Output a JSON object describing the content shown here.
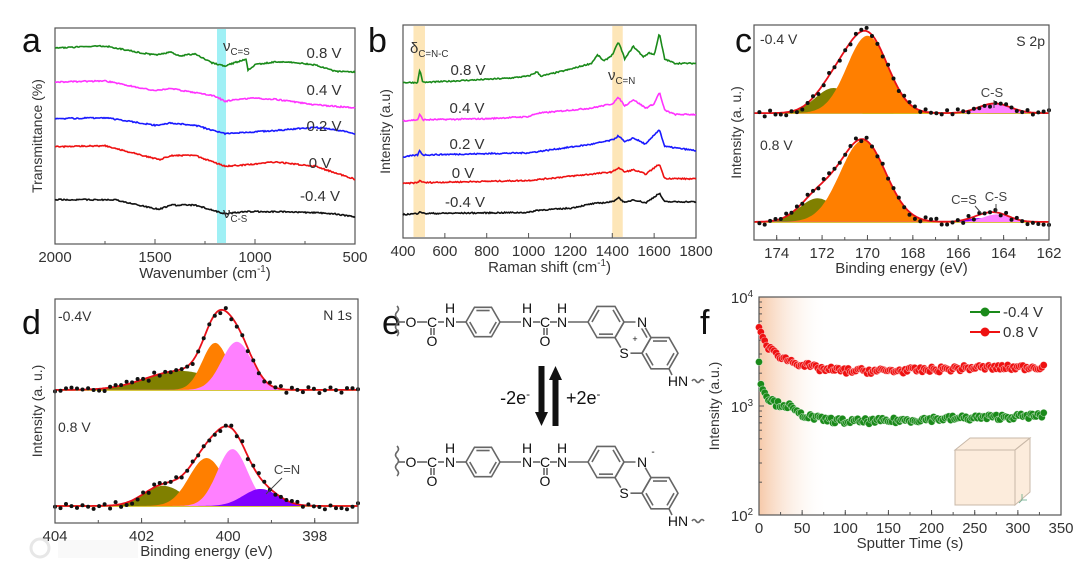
{
  "panel_letters": [
    "a",
    "b",
    "c",
    "d",
    "e",
    "f"
  ],
  "watermark": "大数跨境",
  "chart_data": [
    {
      "id": "a",
      "type": "line",
      "xlabel_parts": [
        "Wavenumber (cm",
        "-1",
        ")"
      ],
      "ylabel": "Transmittance (%)",
      "xlim": [
        2000,
        500
      ],
      "ylim": [
        0,
        100
      ],
      "xticks": [
        2000,
        1500,
        1000,
        500
      ],
      "xminor": 250,
      "band": {
        "range": [
          1145,
          1190
        ],
        "color": "#9ff0f5"
      },
      "annotations": [
        {
          "symbol": "ν",
          "sub": "C=S"
        },
        {
          "symbol": "ν",
          "sub": "C-S"
        }
      ],
      "noise": 0.6,
      "series": [
        {
          "name": "0.8 V",
          "color": "#1a8a1a",
          "points": [
            [
              2000,
              90.7
            ],
            [
              1750,
              91.7
            ],
            [
              1600,
              89
            ],
            [
              1500,
              87.5
            ],
            [
              1420,
              88.9
            ],
            [
              1380,
              87
            ],
            [
              1300,
              88
            ],
            [
              1220,
              84
            ],
            [
              1150,
              82.4
            ],
            [
              1100,
              84
            ],
            [
              1045,
              85.5
            ],
            [
              1035,
              80.6
            ],
            [
              1000,
              83
            ],
            [
              900,
              84.3
            ],
            [
              800,
              84
            ],
            [
              700,
              82.9
            ],
            [
              600,
              80
            ],
            [
              500,
              79.6
            ]
          ]
        },
        {
          "name": "0.4 V",
          "color": "#ff33ff",
          "points": [
            [
              2000,
              75
            ],
            [
              1750,
              75.5
            ],
            [
              1500,
              71
            ],
            [
              1420,
              72
            ],
            [
              1300,
              70
            ],
            [
              1200,
              68.5
            ],
            [
              1150,
              66
            ],
            [
              1100,
              67
            ],
            [
              1000,
              67.5
            ],
            [
              900,
              67
            ],
            [
              700,
              64.5
            ],
            [
              500,
              63
            ]
          ]
        },
        {
          "name": "0.2 V",
          "color": "#1a1aff",
          "points": [
            [
              2000,
              58
            ],
            [
              1750,
              58.5
            ],
            [
              1500,
              55
            ],
            [
              1420,
              56
            ],
            [
              1300,
              55
            ],
            [
              1150,
              51
            ],
            [
              1000,
              52
            ],
            [
              900,
              52.5
            ],
            [
              700,
              54
            ],
            [
              600,
              53
            ],
            [
              500,
              51
            ]
          ]
        },
        {
          "name": "0 V",
          "color": "#ee1111",
          "points": [
            [
              2000,
              45
            ],
            [
              1750,
              45.5
            ],
            [
              1480,
              39
            ],
            [
              1420,
              41
            ],
            [
              1300,
              41
            ],
            [
              1150,
              36
            ],
            [
              1000,
              37
            ],
            [
              900,
              38
            ],
            [
              700,
              36
            ],
            [
              600,
              33
            ],
            [
              500,
              30
            ]
          ]
        },
        {
          "name": "-0.4 V",
          "color": "#111111",
          "points": [
            [
              2000,
              20.5
            ],
            [
              1700,
              20.5
            ],
            [
              1480,
              16
            ],
            [
              1420,
              18
            ],
            [
              1300,
              18
            ],
            [
              1150,
              14
            ],
            [
              1050,
              15
            ],
            [
              900,
              15
            ],
            [
              700,
              14.5
            ],
            [
              600,
              14
            ],
            [
              500,
              12.5
            ]
          ]
        }
      ]
    },
    {
      "id": "b",
      "type": "line",
      "xlabel_parts": [
        "Raman shift (cm",
        "-1",
        ")"
      ],
      "ylabel": "Intensity (a.u)",
      "xlim": [
        400,
        1800
      ],
      "ylim": [
        0,
        100
      ],
      "xticks": [
        400,
        600,
        800,
        1000,
        1200,
        1400,
        1600,
        1800
      ],
      "bands": [
        {
          "range": [
            450,
            505
          ],
          "color": "#fde6b8"
        },
        {
          "range": [
            1400,
            1450
          ],
          "color": "#fde6b8"
        }
      ],
      "annotations": [
        {
          "symbol": "δ",
          "sub": "C=N-C"
        },
        {
          "symbol": "ν",
          "sub": "C=N"
        }
      ],
      "noise": 0.6,
      "series": [
        {
          "name": "0.8 V",
          "color": "#1a8a1a",
          "points": [
            [
              400,
              73
            ],
            [
              470,
              73
            ],
            [
              480,
              79
            ],
            [
              495,
              73
            ],
            [
              700,
              74
            ],
            [
              900,
              75
            ],
            [
              1000,
              76
            ],
            [
              1040,
              78
            ],
            [
              1060,
              76
            ],
            [
              1190,
              79
            ],
            [
              1300,
              82
            ],
            [
              1330,
              86
            ],
            [
              1360,
              83
            ],
            [
              1400,
              86
            ],
            [
              1430,
              92
            ],
            [
              1460,
              84
            ],
            [
              1500,
              90
            ],
            [
              1550,
              85
            ],
            [
              1575,
              87
            ],
            [
              1600,
              86
            ],
            [
              1625,
              96
            ],
            [
              1650,
              84
            ],
            [
              1700,
              82
            ],
            [
              1800,
              82
            ]
          ]
        },
        {
          "name": "0.4 V",
          "color": "#ff33ff",
          "points": [
            [
              400,
              55
            ],
            [
              470,
              55.5
            ],
            [
              480,
              58
            ],
            [
              495,
              55.5
            ],
            [
              800,
              56
            ],
            [
              1000,
              57
            ],
            [
              1040,
              58.5
            ],
            [
              1300,
              61
            ],
            [
              1400,
              63
            ],
            [
              1430,
              66
            ],
            [
              1460,
              62
            ],
            [
              1500,
              65
            ],
            [
              1560,
              61
            ],
            [
              1600,
              63
            ],
            [
              1625,
              68.5
            ],
            [
              1650,
              60
            ],
            [
              1700,
              58
            ],
            [
              1800,
              58
            ]
          ]
        },
        {
          "name": "0.2 V",
          "color": "#1a1aff",
          "points": [
            [
              400,
              38
            ],
            [
              470,
              39
            ],
            [
              480,
              41
            ],
            [
              495,
              39
            ],
            [
              1000,
              40
            ],
            [
              1300,
              44
            ],
            [
              1400,
              46
            ],
            [
              1430,
              48
            ],
            [
              1460,
              45
            ],
            [
              1500,
              47
            ],
            [
              1560,
              44
            ],
            [
              1625,
              51
            ],
            [
              1650,
              43
            ],
            [
              1800,
              41
            ]
          ]
        },
        {
          "name": "0 V",
          "color": "#ee1111",
          "points": [
            [
              400,
              25.5
            ],
            [
              470,
              26
            ],
            [
              480,
              27
            ],
            [
              500,
              26
            ],
            [
              1000,
              27
            ],
            [
              1300,
              30
            ],
            [
              1400,
              31
            ],
            [
              1430,
              33
            ],
            [
              1460,
              31
            ],
            [
              1500,
              32
            ],
            [
              1560,
              30
            ],
            [
              1625,
              34.7
            ],
            [
              1650,
              28
            ],
            [
              1800,
              27.7
            ]
          ]
        },
        {
          "name": "-0.4 V",
          "color": "#111111",
          "points": [
            [
              400,
              11
            ],
            [
              470,
              11.5
            ],
            [
              480,
              12.5
            ],
            [
              500,
              11.5
            ],
            [
              1000,
              12
            ],
            [
              1040,
              13
            ],
            [
              1200,
              14
            ],
            [
              1300,
              16
            ],
            [
              1400,
              17
            ],
            [
              1430,
              19
            ],
            [
              1460,
              16.5
            ],
            [
              1500,
              18
            ],
            [
              1560,
              16.5
            ],
            [
              1625,
              21
            ],
            [
              1650,
              17
            ],
            [
              1800,
              17
            ]
          ]
        }
      ]
    },
    {
      "id": "c",
      "type": "area",
      "xlabel": "Binding energy (eV)",
      "ylabel": "Intensity (a. u.)",
      "xlim": [
        175,
        162
      ],
      "ylim": [
        0,
        100
      ],
      "xticks": [
        174,
        172,
        170,
        168,
        166,
        164,
        162
      ],
      "xminor": 1,
      "title": "S 2p",
      "fit_color": "#e8101a",
      "spectra": [
        {
          "name": "-0.4 V",
          "baseline": 59,
          "components": [
            {
              "center": 171.5,
              "height": 11.7,
              "width": 0.8,
              "color": "#808000"
            },
            {
              "center": 170.0,
              "height": 36,
              "width": 0.9,
              "color": "#ff7f00"
            },
            {
              "center": 164.4,
              "height": 4.5,
              "width": 0.7,
              "color": "#ff80ff",
              "label": "C-S"
            }
          ]
        },
        {
          "name": "0.8 V",
          "baseline": 8.4,
          "components": [
            {
              "center": 172.2,
              "height": 11,
              "width": 0.8,
              "color": "#808000"
            },
            {
              "center": 170.2,
              "height": 38,
              "width": 1.0,
              "color": "#ff7f00"
            },
            {
              "center": 165.0,
              "height": 1.8,
              "width": 0.6,
              "color": "#8000ff",
              "label": "C=S"
            },
            {
              "center": 164.3,
              "height": 3.5,
              "width": 0.6,
              "color": "#ff80ff",
              "label": "C-S"
            }
          ]
        }
      ]
    },
    {
      "id": "d",
      "type": "area",
      "xlabel": "Binding energy (eV)",
      "ylabel": "Intensity (a. u.)",
      "xlim": [
        404,
        397
      ],
      "ylim": [
        0,
        100
      ],
      "xticks": [
        404,
        402,
        400,
        398
      ],
      "xminor": 1,
      "title": "N 1s",
      "fit_color": "#e8101a",
      "spectra": [
        {
          "name": "-0.4V",
          "baseline": 59.4,
          "components": [
            {
              "center": 401.1,
              "height": 8.5,
              "width": 0.8,
              "color": "#808000"
            },
            {
              "center": 400.3,
              "height": 21,
              "width": 0.3,
              "color": "#ff7f00"
            },
            {
              "center": 399.8,
              "height": 21.5,
              "width": 0.35,
              "color": "#ff80ff"
            }
          ]
        },
        {
          "name": "0.8 V",
          "baseline": 7.6,
          "components": [
            {
              "center": 401.5,
              "height": 9,
              "width": 0.45,
              "color": "#808000"
            },
            {
              "center": 400.5,
              "height": 21.4,
              "width": 0.4,
              "color": "#ff7f00"
            },
            {
              "center": 399.9,
              "height": 25.4,
              "width": 0.35,
              "color": "#ff80ff"
            },
            {
              "center": 399.25,
              "height": 7.6,
              "width": 0.4,
              "color": "#8000ff",
              "label": "C=N"
            }
          ]
        }
      ]
    },
    {
      "id": "f",
      "type": "scatter",
      "xlabel": "Sputter Time (s)",
      "ylabel": "Intensity (a.u.)",
      "xlim": [
        0,
        350
      ],
      "ylim": [
        100,
        10000
      ],
      "ylog": true,
      "xticks": [
        0,
        50,
        100,
        150,
        200,
        250,
        300,
        350
      ],
      "xminor": 25,
      "yticks": [
        100,
        1000,
        10000
      ],
      "ytick_labels": [
        {
          "base": "10",
          "exp": "2"
        },
        {
          "base": "10",
          "exp": "3"
        },
        {
          "base": "10",
          "exp": "4"
        }
      ],
      "shaded_range": [
        0,
        80
      ],
      "legend": "top-right",
      "series": [
        {
          "name": "-0.4 V",
          "color": "#1a8a1a",
          "points": [
            [
              0,
              2600
            ],
            [
              2,
              1700
            ],
            [
              5,
              1400
            ],
            [
              10,
              1200
            ],
            [
              20,
              1050
            ],
            [
              35,
              1000
            ],
            [
              45,
              850
            ],
            [
              70,
              760
            ],
            [
              100,
              720
            ],
            [
              150,
              730
            ],
            [
              200,
              760
            ],
            [
              250,
              780
            ],
            [
              300,
              800
            ],
            [
              330,
              820
            ]
          ]
        },
        {
          "name": "0.8 V",
          "color": "#ee1111",
          "points": [
            [
              0,
              5500
            ],
            [
              3,
              4500
            ],
            [
              8,
              3700
            ],
            [
              15,
              3200
            ],
            [
              30,
              2700
            ],
            [
              50,
              2400
            ],
            [
              70,
              2200
            ],
            [
              100,
              2100
            ],
            [
              150,
              2100
            ],
            [
              200,
              2150
            ],
            [
              250,
              2250
            ],
            [
              300,
              2250
            ],
            [
              330,
              2300
            ]
          ]
        }
      ]
    }
  ],
  "scheme": {
    "atoms": {
      "O": "O",
      "C": "C",
      "N": "N",
      "H": "H",
      "S": "S",
      "HN": "HN"
    },
    "charges": {
      "plus": "+",
      "minus": "-"
    },
    "reaction": {
      "oxidation": "-2e",
      "reduction": "+2e",
      "electron_charge": "-"
    }
  }
}
